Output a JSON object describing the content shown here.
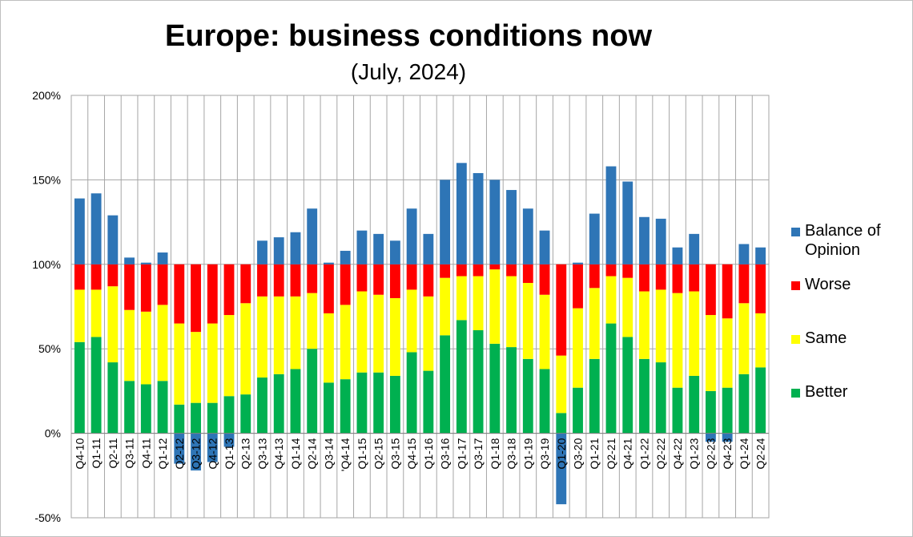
{
  "chart_data": {
    "type": "bar",
    "stacked": true,
    "title": "Europe: business conditions now",
    "subtitle": "(July, 2024)",
    "xlabel": "",
    "ylabel": "",
    "ylim": [
      -50,
      200
    ],
    "y_ticks": [
      -50,
      0,
      50,
      100,
      150,
      200
    ],
    "y_tick_labels": [
      "-50%",
      "0%",
      "50%",
      "100%",
      "150%",
      "200%"
    ],
    "grid": true,
    "legend_position": "right",
    "categories": [
      "Q4-10",
      "Q1-11",
      "Q2-11",
      "Q3-11",
      "Q4-11",
      "Q1-12",
      "Q2-12",
      "Q3-12",
      "Q4-12",
      "Q1-13",
      "Q2-13",
      "Q3-13",
      "Q4-13",
      "Q1-14",
      "Q2-14",
      "Q3-14",
      "'Q4-14",
      "Q1-15",
      "Q2-15",
      "Q3-15",
      "Q4-15",
      "Q1-16",
      "Q3-16",
      "Q1-17",
      "Q3-17",
      "Q1-18",
      "Q3-18",
      "Q1-19",
      "Q3-19",
      "Q1-20",
      "Q3-20",
      "Q1-21",
      "Q2-21",
      "Q4-21",
      "Q1-22",
      "Q2-22",
      "Q4-22",
      "Q1-23",
      "Q2-23",
      "Q4-23",
      "Q1-24",
      "Q2-24"
    ],
    "series": [
      {
        "name": "Better",
        "color": "#00b050",
        "values": [
          54,
          57,
          42,
          31,
          29,
          31,
          17,
          18,
          18,
          22,
          23,
          33,
          35,
          38,
          50,
          30,
          32,
          36,
          36,
          34,
          48,
          37,
          58,
          67,
          61,
          53,
          51,
          44,
          38,
          12,
          27,
          44,
          65,
          57,
          44,
          42,
          27,
          34,
          25,
          27,
          35,
          39
        ]
      },
      {
        "name": "Same",
        "color": "#ffff00",
        "values": [
          31,
          28,
          45,
          42,
          43,
          45,
          48,
          42,
          47,
          48,
          54,
          48,
          46,
          43,
          33,
          41,
          44,
          48,
          46,
          46,
          37,
          44,
          34,
          26,
          32,
          44,
          42,
          45,
          44,
          34,
          47,
          42,
          28,
          35,
          40,
          43,
          56,
          50,
          45,
          41,
          42,
          32
        ]
      },
      {
        "name": "Worse",
        "color": "#ff0000",
        "values": [
          15,
          15,
          13,
          27,
          28,
          24,
          35,
          40,
          35,
          30,
          23,
          19,
          19,
          19,
          17,
          29,
          24,
          16,
          18,
          20,
          15,
          19,
          8,
          7,
          7,
          3,
          7,
          11,
          18,
          54,
          26,
          14,
          7,
          8,
          16,
          15,
          17,
          16,
          30,
          32,
          23,
          29
        ]
      },
      {
        "name": "Balance of Opinion",
        "color": "#2e75b6",
        "values": [
          39,
          42,
          29,
          4,
          1,
          7,
          -18,
          -22,
          -17,
          -8,
          0,
          14,
          16,
          19,
          33,
          1,
          8,
          20,
          18,
          14,
          33,
          18,
          50,
          60,
          54,
          50,
          44,
          33,
          20,
          -42,
          1,
          30,
          58,
          49,
          28,
          27,
          10,
          18,
          -5,
          -5,
          12,
          10
        ]
      }
    ]
  },
  "legend": {
    "items": [
      {
        "label": "Balance of Opinion",
        "color": "#2e75b6"
      },
      {
        "label": "Worse",
        "color": "#ff0000"
      },
      {
        "label": "Same",
        "color": "#ffff00"
      },
      {
        "label": "Better",
        "color": "#00b050"
      }
    ]
  }
}
